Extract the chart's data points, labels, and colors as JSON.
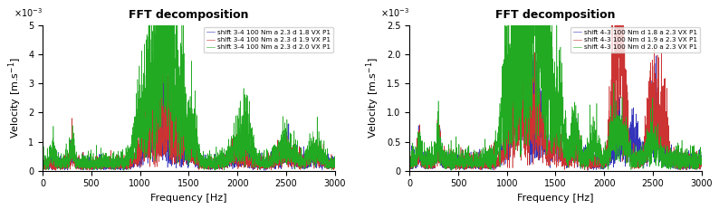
{
  "title": "FFT decomposition",
  "xlabel": "Frequency [Hz]",
  "ylabel": "Velocity [m.s⁻¹]",
  "xlim": [
    0,
    3000
  ],
  "left_ylim": [
    0,
    0.005
  ],
  "right_ylim": [
    0,
    0.0025
  ],
  "left_yticks": [
    0,
    0.001,
    0.002,
    0.003,
    0.004,
    0.005
  ],
  "right_yticks": [
    0,
    0.0005,
    0.001,
    0.0015,
    0.002,
    0.0025
  ],
  "left_legend": [
    "shift 3-4 100 Nm a 2.3 d 1.8 VX P1",
    "shift 3-4 100 Nm a 2.3 d 1.9 VX P1",
    "shift 3-4 100 Nm a 2.3 d 2.0 VX P1"
  ],
  "right_legend": [
    "shift 4-3 100 Nm d 1.8 a 2.3 VX P1",
    "shift 4-3 100 Nm d 1.9 a 2.3 VX P1",
    "shift 4-3 100 Nm d 2.0 a 2.3 VX P1"
  ],
  "colors": [
    "#3333bb",
    "#cc3333",
    "#22aa22"
  ],
  "n_points": 3000,
  "freq_max": 3000
}
